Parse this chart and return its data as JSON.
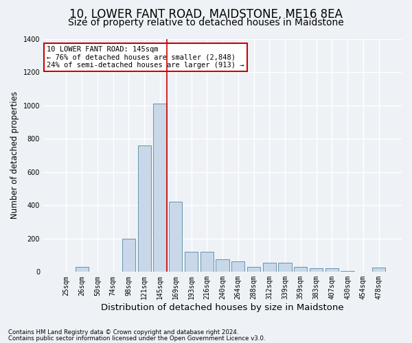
{
  "title": "10, LOWER FANT ROAD, MAIDSTONE, ME16 8EA",
  "subtitle": "Size of property relative to detached houses in Maidstone",
  "xlabel": "Distribution of detached houses by size in Maidstone",
  "ylabel": "Number of detached properties",
  "footnote1": "Contains HM Land Registry data © Crown copyright and database right 2024.",
  "footnote2": "Contains public sector information licensed under the Open Government Licence v3.0.",
  "bar_labels": [
    "25sqm",
    "26sqm",
    "50sqm",
    "74sqm",
    "98sqm",
    "121sqm",
    "145sqm",
    "169sqm",
    "193sqm",
    "216sqm",
    "240sqm",
    "264sqm",
    "288sqm",
    "312sqm",
    "339sqm",
    "359sqm",
    "383sqm",
    "407sqm",
    "430sqm",
    "454sqm",
    "478sqm"
  ],
  "bar_values": [
    0,
    30,
    0,
    0,
    200,
    760,
    1010,
    420,
    120,
    120,
    75,
    65,
    30,
    55,
    55,
    30,
    20,
    20,
    5,
    0,
    25
  ],
  "bar_color": "#c8d8e8",
  "bar_edge_color": "#5585a5",
  "highlight_index": 6,
  "highlight_line_color": "#cc0000",
  "annotation_text": "10 LOWER FANT ROAD: 145sqm\n← 76% of detached houses are smaller (2,848)\n24% of semi-detached houses are larger (913) →",
  "annotation_box_color": "#ffffff",
  "annotation_box_edge_color": "#cc0000",
  "ylim": [
    0,
    1400
  ],
  "yticks": [
    0,
    200,
    400,
    600,
    800,
    1000,
    1200,
    1400
  ],
  "background_color": "#eef2f6",
  "plot_background_color": "#eef2f6",
  "grid_color": "#ffffff",
  "title_fontsize": 12,
  "subtitle_fontsize": 10,
  "xlabel_fontsize": 9.5,
  "ylabel_fontsize": 8.5,
  "tick_fontsize": 7,
  "annot_fontsize": 7.5
}
